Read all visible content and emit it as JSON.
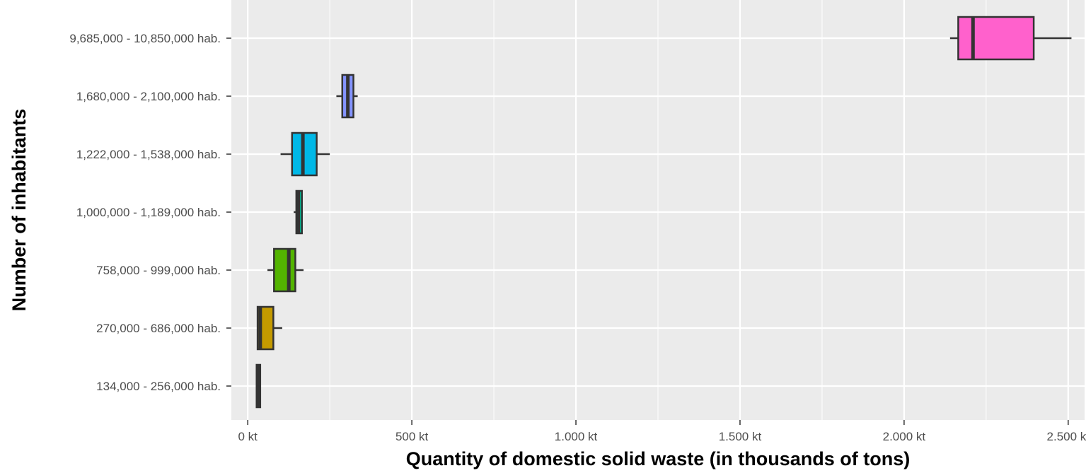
{
  "chart_data": {
    "type": "boxplot",
    "orientation": "horizontal",
    "xlabel": "Quantity of domestic solid waste (in thousands of tons)",
    "ylabel": "Number of inhabitants",
    "xlim": [
      -50,
      2550
    ],
    "x_ticks": [
      {
        "value": 0,
        "label": "0 kt"
      },
      {
        "value": 500,
        "label": "500 kt"
      },
      {
        "value": 1000,
        "label": "1.000 kt"
      },
      {
        "value": 1500,
        "label": "1.500 kt"
      },
      {
        "value": 2000,
        "label": "2.000 kt"
      },
      {
        "value": 2500,
        "label": "2.500 kt"
      }
    ],
    "grid": true,
    "legend": "none",
    "categories": [
      {
        "label": "9,685,000 - 10,850,000 hab.",
        "color": "#FF61CC",
        "min": 2140,
        "q1": 2165,
        "median": 2210,
        "q3": 2395,
        "max": 2510
      },
      {
        "label": "1,680,000 - 2,100,000 hab.",
        "color": "#8494FF",
        "min": 270,
        "q1": 288,
        "median": 305,
        "q3": 322,
        "max": 335
      },
      {
        "label": "1,222,000 - 1,538,000 hab.",
        "color": "#00B8E7",
        "min": 100,
        "q1": 135,
        "median": 168,
        "q3": 210,
        "max": 250
      },
      {
        "label": "1,000,000 - 1,189,000 hab.",
        "color": "#00C19A",
        "min": 140,
        "q1": 148,
        "median": 154,
        "q3": 165,
        "max": 168
      },
      {
        "label": "758,000 - 999,000 hab.",
        "color": "#53B400",
        "min": 60,
        "q1": 80,
        "median": 125,
        "q3": 145,
        "max": 170
      },
      {
        "label": "270,000 - 686,000 hab.",
        "color": "#C49A00",
        "min": 28,
        "q1": 30,
        "median": 38,
        "q3": 78,
        "max": 105
      },
      {
        "label": "134,000 - 256,000 hab.",
        "color": "#F8766D",
        "min": 25,
        "q1": 27,
        "median": 32,
        "q3": 38,
        "max": 40
      }
    ]
  }
}
